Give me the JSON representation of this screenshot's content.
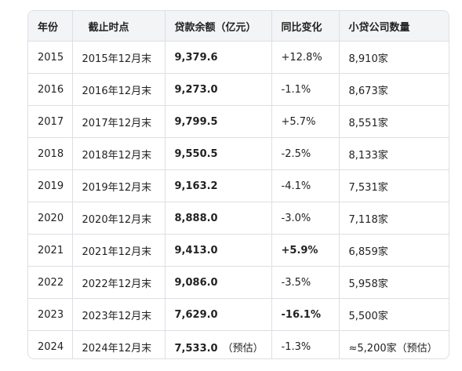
{
  "table": {
    "headers": [
      "年份",
      "截止时点",
      "贷款余额（亿元）",
      "同比变化",
      "小贷公司数量"
    ],
    "rows": [
      {
        "year": "2015",
        "date": "2015年12月末",
        "balance": "9,379.6",
        "balance_note": "",
        "change": "+12.8%",
        "change_bold": false,
        "count": "8,910家"
      },
      {
        "year": "2016",
        "date": "2016年12月末",
        "balance": "9,273.0",
        "balance_note": "",
        "change": "-1.1%",
        "change_bold": false,
        "count": "8,673家"
      },
      {
        "year": "2017",
        "date": "2017年12月末",
        "balance": "9,799.5",
        "balance_note": "",
        "change": "+5.7%",
        "change_bold": false,
        "count": "8,551家"
      },
      {
        "year": "2018",
        "date": "2018年12月末",
        "balance": "9,550.5",
        "balance_note": "",
        "change": "-2.5%",
        "change_bold": false,
        "count": "8,133家"
      },
      {
        "year": "2019",
        "date": "2019年12月末",
        "balance": "9,163.2",
        "balance_note": "",
        "change": "-4.1%",
        "change_bold": false,
        "count": "7,531家"
      },
      {
        "year": "2020",
        "date": "2020年12月末",
        "balance": "8,888.0",
        "balance_note": "",
        "change": "-3.0%",
        "change_bold": false,
        "count": "7,118家"
      },
      {
        "year": "2021",
        "date": "2021年12月末",
        "balance": "9,413.0",
        "balance_note": "",
        "change": "+5.9%",
        "change_bold": true,
        "count": "6,859家"
      },
      {
        "year": "2022",
        "date": "2022年12月末",
        "balance": "9,086.0",
        "balance_note": "",
        "change": "-3.5%",
        "change_bold": false,
        "count": "5,958家"
      },
      {
        "year": "2023",
        "date": "2023年12月末",
        "balance": "7,629.0",
        "balance_note": "",
        "change": "-16.1%",
        "change_bold": true,
        "count": "5,500家"
      },
      {
        "year": "2024",
        "date": "2024年12月末",
        "balance": "7,533.0",
        "balance_note": "（预估）",
        "change": "-1.3%",
        "change_bold": false,
        "count": "≈5,200家（预估）"
      }
    ]
  }
}
